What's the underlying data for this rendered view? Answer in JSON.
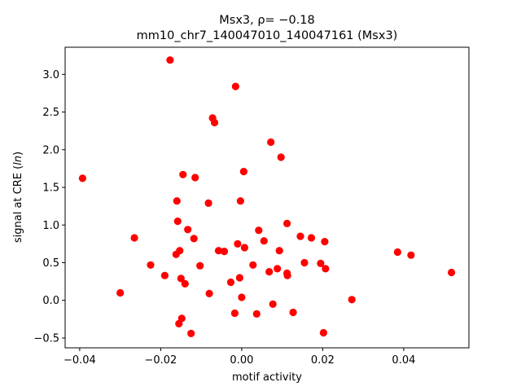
{
  "chart_data": {
    "type": "scatter",
    "title_line1": "Msx3, ρ= −0.18",
    "title_line2": "mm10_chr7_140047010_140047161 (Msx3)",
    "xlabel": "motif activity",
    "ylabel": "signal at CRE (",
    "ylabel_italic": "ln",
    "ylabel_end": ")",
    "xlim": [
      -0.0436,
      0.0561
    ],
    "ylim": [
      -0.63,
      3.36
    ],
    "xticks": [
      -0.04,
      -0.02,
      0.0,
      0.02,
      0.04
    ],
    "xtick_labels": [
      "−0.04",
      "−0.02",
      "0.00",
      "0.02",
      "0.04"
    ],
    "yticks": [
      -0.5,
      0.0,
      0.5,
      1.0,
      1.5,
      2.0,
      2.5,
      3.0
    ],
    "ytick_labels": [
      "−0.5",
      "0.0",
      "0.5",
      "1.0",
      "1.5",
      "2.0",
      "2.5",
      "3.0"
    ],
    "marker_color": "#ff0000",
    "x": [
      -0.0393,
      -0.03,
      -0.0265,
      -0.0225,
      -0.019,
      -0.0177,
      -0.0162,
      -0.016,
      -0.0158,
      -0.0155,
      -0.0153,
      -0.015,
      -0.0148,
      -0.0145,
      -0.014,
      -0.0133,
      -0.0125,
      -0.0118,
      -0.0115,
      -0.0103,
      -0.0082,
      -0.008,
      -0.0072,
      -0.0067,
      -0.0057,
      -0.0043,
      -0.0027,
      -0.0017,
      -0.0015,
      -0.001,
      -0.0005,
      -0.0003,
      0.0,
      0.0005,
      0.0007,
      0.0028,
      0.0037,
      0.0042,
      0.0055,
      0.0068,
      0.0072,
      0.0077,
      0.0088,
      0.0093,
      0.0097,
      0.0112,
      0.0112,
      0.0113,
      0.0127,
      0.0145,
      0.0155,
      0.0172,
      0.0195,
      0.0202,
      0.0205,
      0.0207,
      0.0272,
      0.0385,
      0.0418,
      0.0518
    ],
    "y": [
      1.62,
      0.1,
      0.83,
      0.47,
      0.33,
      3.19,
      0.61,
      1.32,
      1.05,
      -0.31,
      0.66,
      0.29,
      -0.24,
      1.67,
      0.22,
      0.94,
      -0.44,
      0.82,
      1.63,
      0.46,
      1.29,
      0.09,
      2.42,
      2.36,
      0.66,
      0.65,
      0.24,
      -0.17,
      2.84,
      0.75,
      0.3,
      1.32,
      0.04,
      1.71,
      0.7,
      0.47,
      -0.18,
      0.93,
      0.79,
      0.38,
      2.1,
      -0.05,
      0.42,
      0.66,
      1.9,
      1.02,
      0.36,
      0.33,
      -0.16,
      0.85,
      0.5,
      0.83,
      0.49,
      -0.43,
      0.78,
      0.42,
      0.01,
      0.64,
      0.6,
      0.37
    ]
  }
}
